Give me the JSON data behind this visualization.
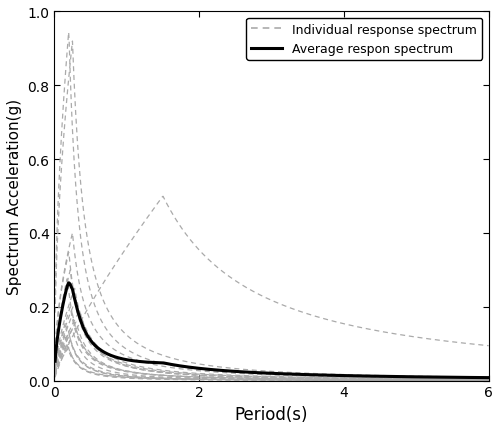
{
  "title": "",
  "xlabel": "Period(s)",
  "ylabel": "Spectrum Acceleration(g)",
  "xlim": [
    0,
    6
  ],
  "ylim": [
    0,
    1.0
  ],
  "xticks": [
    0,
    2,
    4,
    6
  ],
  "yticks": [
    0.0,
    0.2,
    0.4,
    0.6,
    0.8,
    1.0
  ],
  "legend_individual": "Individual response spectrum",
  "legend_average": "Average respon spectrum",
  "individual_color": "#aaaaaa",
  "average_color": "#000000",
  "figsize": [
    5.0,
    4.31
  ],
  "dpi": 100
}
